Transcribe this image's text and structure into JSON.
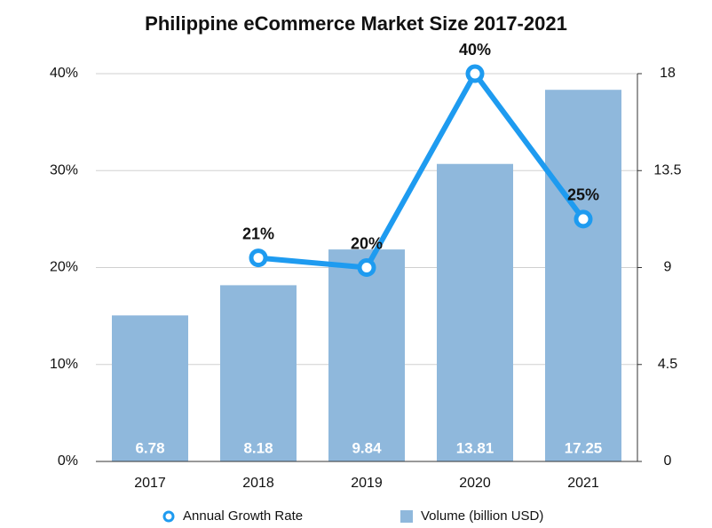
{
  "chart_data": {
    "type": "combo",
    "title": "Philippine eCommerce Market Size 2017-2021",
    "categories": [
      "2017",
      "2018",
      "2019",
      "2020",
      "2021"
    ],
    "series": [
      {
        "name": "Annual Growth Rate",
        "type": "line",
        "axis": "y",
        "color": "#1e9bf0",
        "values": [
          null,
          21,
          20,
          40,
          25
        ],
        "value_labels": [
          null,
          "21%",
          "20%",
          "40%",
          "25%"
        ]
      },
      {
        "name": "Volume (billion USD)",
        "type": "bar",
        "axis": "y2",
        "color": "#8fb8dc",
        "values": [
          6.78,
          8.18,
          9.84,
          13.81,
          17.25
        ]
      }
    ],
    "ylim": [
      0,
      40
    ],
    "yticks": [
      {
        "value": 0,
        "label": "0%"
      },
      {
        "value": 10,
        "label": "10%"
      },
      {
        "value": 20,
        "label": "20%"
      },
      {
        "value": 30,
        "label": "30%"
      },
      {
        "value": 40,
        "label": "40%"
      }
    ],
    "y2lim": [
      0,
      18
    ],
    "y2ticks": [
      0,
      4.5,
      9,
      13.5,
      18
    ],
    "grid": true,
    "legend": "bottom"
  }
}
